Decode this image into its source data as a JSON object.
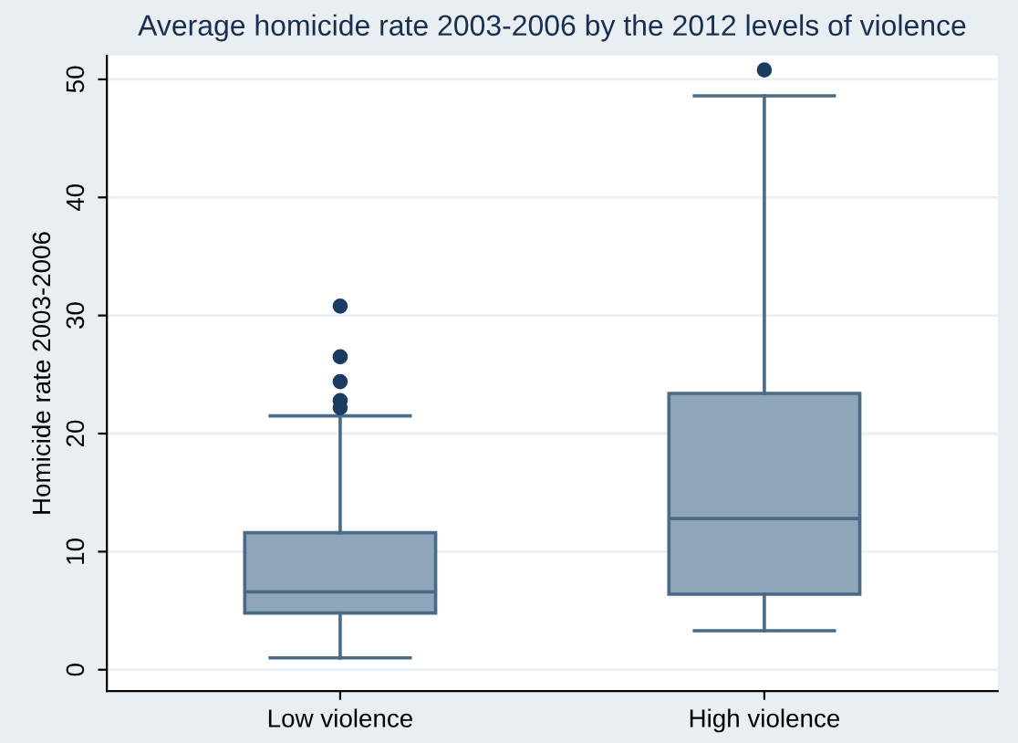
{
  "chart_data": {
    "type": "box",
    "title": "Average homicide rate 2003-2006 by the 2012 levels of violence",
    "ylabel": "Homicide rate 2003-2006",
    "categories": [
      "Low violence",
      "High violence"
    ],
    "boxes": [
      {
        "low": 1.0,
        "q1": 4.8,
        "median": 6.6,
        "q3": 11.6,
        "high": 21.5,
        "outliers": [
          30.8,
          26.5,
          24.4,
          22.8,
          22.2
        ]
      },
      {
        "low": 3.3,
        "q1": 6.4,
        "median": 12.8,
        "q3": 23.4,
        "high": 48.6,
        "outliers": [
          50.8
        ]
      }
    ],
    "color": "#8fa5b9",
    "ylim": [
      -1.8,
      52
    ],
    "yticks": [
      0,
      10,
      20,
      30,
      40,
      50
    ],
    "grid": "y"
  }
}
